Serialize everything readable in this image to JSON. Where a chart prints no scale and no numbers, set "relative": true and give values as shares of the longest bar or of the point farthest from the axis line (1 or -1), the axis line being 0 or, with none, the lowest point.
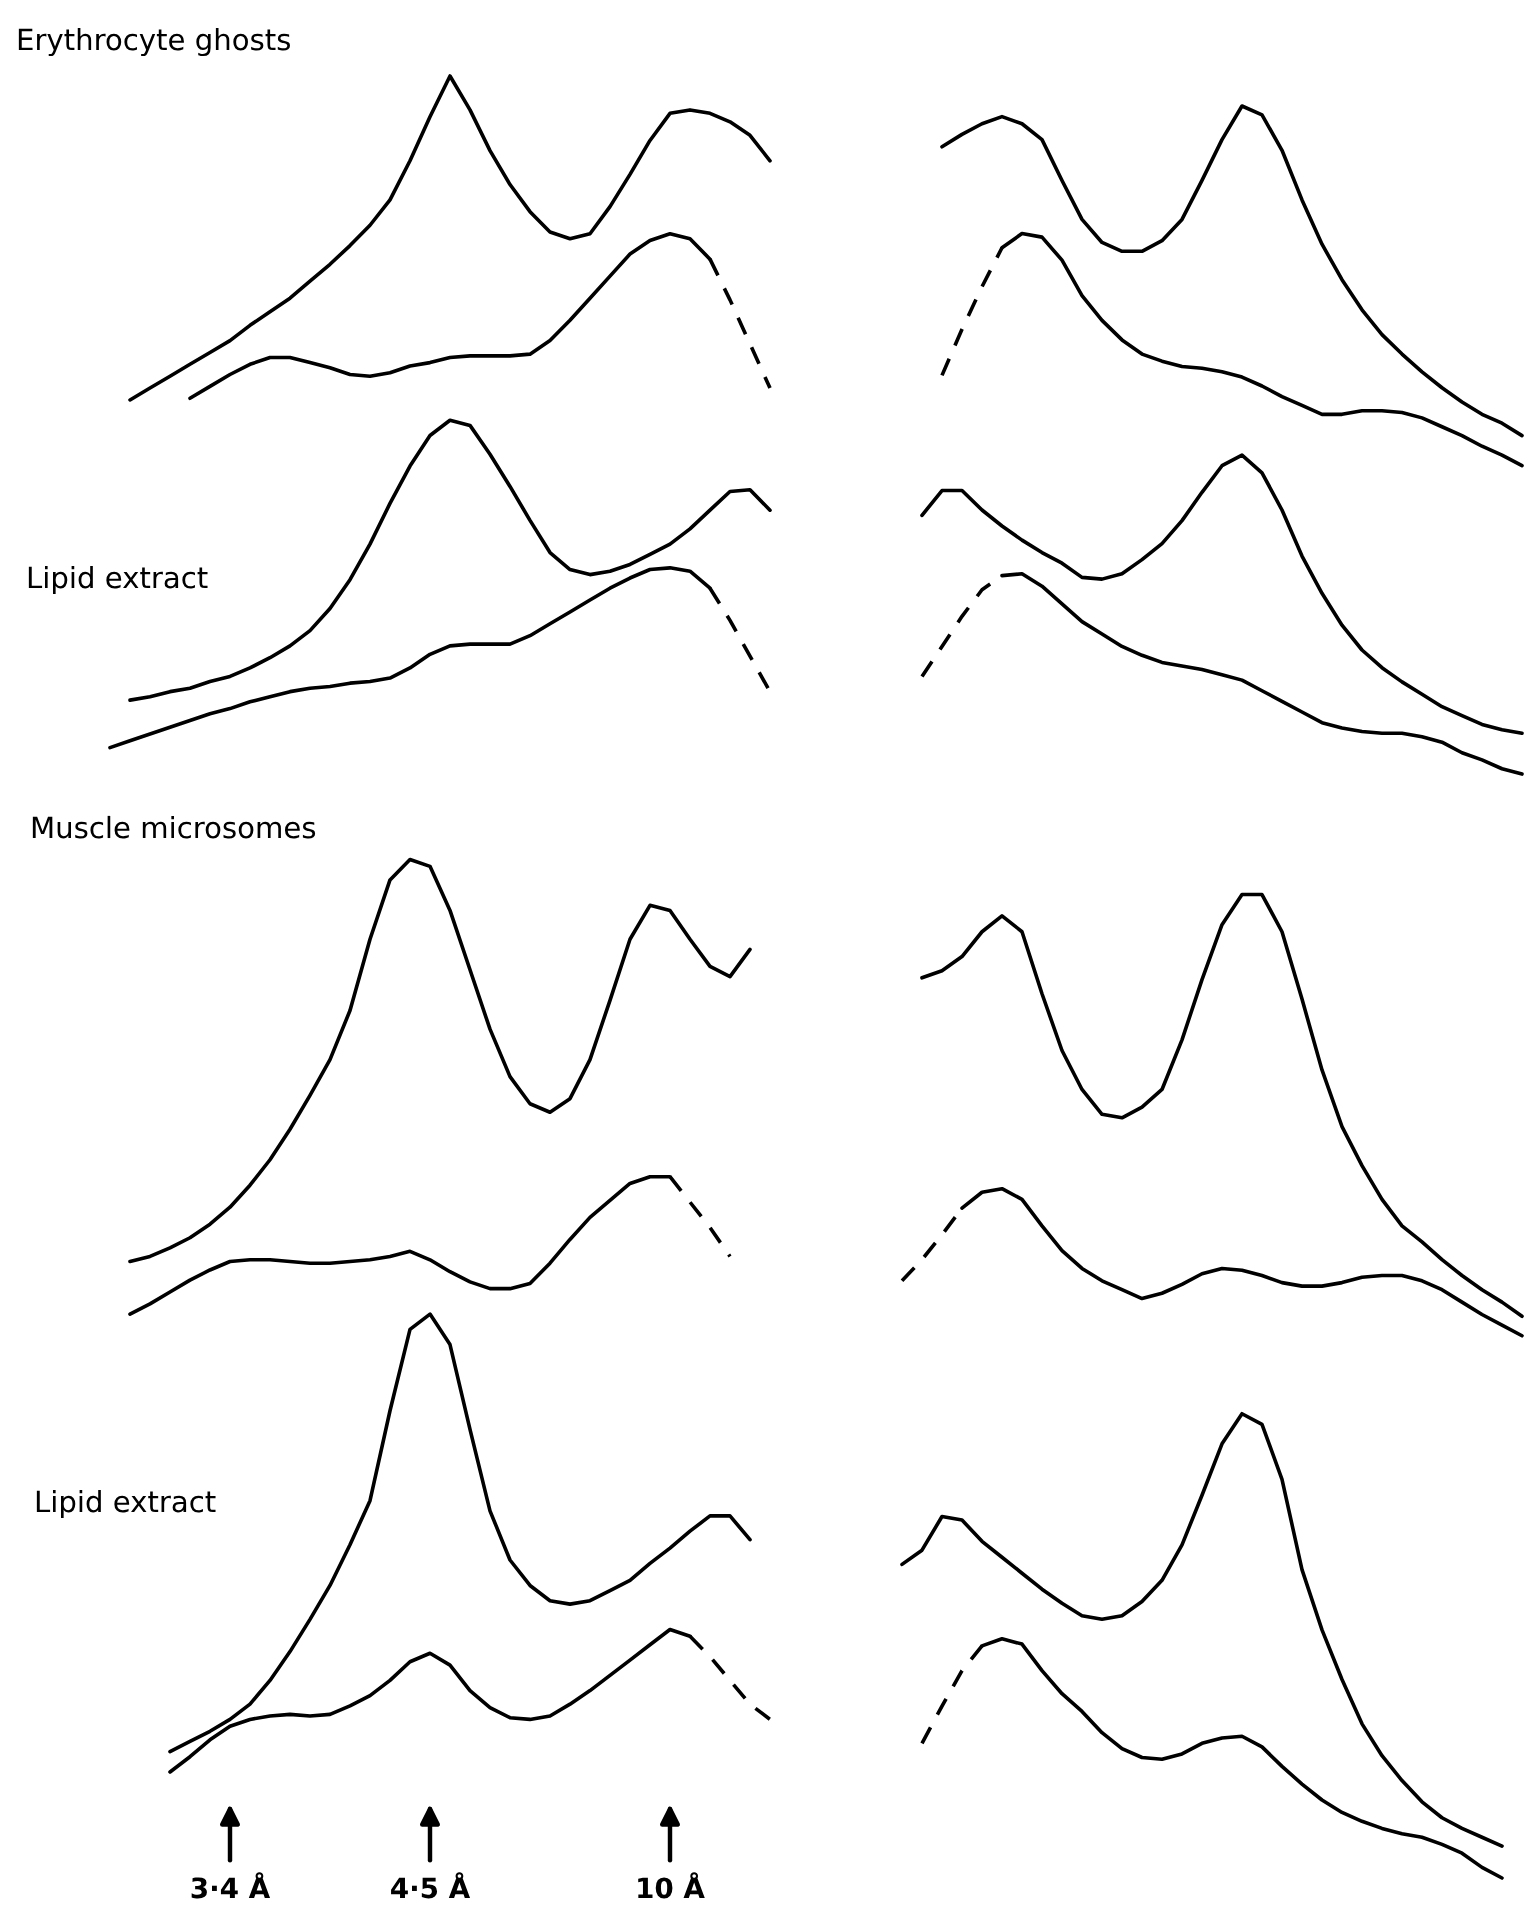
{
  "chart_data": [
    {
      "type": "line",
      "relative": true,
      "annotations": [
        "Erythrocyte ghosts",
        "Lipid extract",
        "Muscle microsomes",
        "Lipid extract"
      ],
      "categories": [
        null,
        null,
        null,
        null,
        null,
        null,
        "3·4 Å",
        null,
        null,
        null,
        null,
        null,
        null,
        null,
        null,
        null,
        "4·5 Å",
        null,
        null,
        null,
        null,
        null,
        null,
        null,
        null,
        null,
        null,
        null,
        "10 Å",
        null,
        null,
        null,
        null,
        null
      ],
      "series": [
        {
          "color": "#000000",
          "line_style": "solid",
          "values": [
            null,
            0.809,
            0.816,
            0.823,
            0.83,
            0.837,
            0.844,
            0.853,
            0.861,
            0.869,
            0.879,
            0.889,
            0.9,
            0.912,
            0.927,
            0.95,
            0.976,
            1.0,
            0.98,
            0.956,
            0.936,
            0.92,
            0.908,
            0.904,
            0.907,
            0.923,
            0.942,
            0.962,
            0.978,
            0.98,
            0.978,
            0.973,
            0.965,
            0.95
          ]
        },
        {
          "color": "#000000",
          "line_style": "solid",
          "values": [
            null,
            null,
            null,
            null,
            0.81,
            0.817,
            0.824,
            0.83,
            0.834,
            0.834,
            0.831,
            0.828,
            0.824,
            0.823,
            0.825,
            0.829,
            0.831,
            0.834,
            0.835,
            0.835,
            0.835,
            0.836,
            0.844,
            0.856,
            0.869,
            0.882,
            0.895,
            0.903,
            0.907,
            0.904,
            0.892,
            null,
            null,
            null
          ]
        },
        {
          "color": "#000000",
          "line_style": "dashed",
          "values": [
            null,
            null,
            null,
            null,
            null,
            null,
            null,
            null,
            null,
            null,
            null,
            null,
            null,
            null,
            null,
            null,
            null,
            null,
            null,
            null,
            null,
            null,
            null,
            null,
            null,
            null,
            null,
            null,
            null,
            null,
            0.892,
            0.868,
            0.842,
            0.816
          ]
        },
        {
          "color": "#000000",
          "line_style": "solid",
          "values": [
            null,
            0.632,
            0.634,
            0.637,
            0.639,
            0.643,
            0.646,
            0.651,
            0.657,
            0.664,
            0.673,
            0.686,
            0.703,
            0.724,
            0.748,
            0.77,
            0.788,
            0.797,
            0.794,
            0.777,
            0.758,
            0.738,
            0.719,
            0.709,
            0.706,
            0.708,
            0.712,
            0.718,
            0.724,
            0.733,
            0.744,
            0.755,
            0.756,
            0.744
          ]
        },
        {
          "color": "#000000",
          "line_style": "solid",
          "values": [
            0.604,
            0.608,
            0.612,
            0.616,
            0.62,
            0.624,
            0.627,
            0.631,
            0.634,
            0.637,
            0.639,
            0.64,
            0.642,
            0.643,
            0.645,
            0.651,
            0.659,
            0.664,
            0.665,
            0.665,
            0.665,
            0.67,
            0.677,
            0.684,
            0.691,
            0.698,
            0.704,
            0.709,
            0.71,
            0.708,
            0.698,
            null,
            null,
            null
          ]
        },
        {
          "color": "#000000",
          "line_style": "dashed",
          "values": [
            null,
            null,
            null,
            null,
            null,
            null,
            null,
            null,
            null,
            null,
            null,
            null,
            null,
            null,
            null,
            null,
            null,
            null,
            null,
            null,
            null,
            null,
            null,
            null,
            null,
            null,
            null,
            null,
            null,
            null,
            0.698,
            0.679,
            0.658,
            0.637
          ]
        },
        {
          "color": "#000000",
          "line_style": "solid",
          "values": [
            null,
            0.301,
            0.304,
            0.309,
            0.315,
            0.323,
            0.333,
            0.346,
            0.361,
            0.379,
            0.399,
            0.42,
            0.449,
            0.491,
            0.526,
            0.538,
            0.534,
            0.508,
            0.473,
            0.438,
            0.41,
            0.394,
            0.389,
            0.397,
            0.42,
            0.455,
            0.491,
            0.511,
            0.508,
            0.491,
            0.475,
            0.469,
            0.485,
            null
          ]
        },
        {
          "color": "#000000",
          "line_style": "solid",
          "values": [
            null,
            0.27,
            0.276,
            0.283,
            0.29,
            0.296,
            0.301,
            0.302,
            0.302,
            0.301,
            0.3,
            0.3,
            0.301,
            0.302,
            0.304,
            0.307,
            0.302,
            0.295,
            0.289,
            0.285,
            0.285,
            0.288,
            0.3,
            0.314,
            0.327,
            0.337,
            0.347,
            0.351,
            0.351,
            null,
            null,
            null,
            null,
            null
          ]
        },
        {
          "color": "#000000",
          "line_style": "dashed",
          "values": [
            null,
            null,
            null,
            null,
            null,
            null,
            null,
            null,
            null,
            null,
            null,
            null,
            null,
            null,
            null,
            null,
            null,
            null,
            null,
            null,
            null,
            null,
            null,
            null,
            null,
            null,
            null,
            null,
            0.351,
            0.336,
            0.321,
            0.304,
            null,
            null
          ]
        },
        {
          "color": "#000000",
          "line_style": "solid",
          "values": [
            null,
            null,
            null,
            0.012,
            0.018,
            0.024,
            0.031,
            0.04,
            0.054,
            0.071,
            0.09,
            0.11,
            0.134,
            0.16,
            0.213,
            0.261,
            0.27,
            0.252,
            0.202,
            0.154,
            0.125,
            0.11,
            0.101,
            0.099,
            0.101,
            0.107,
            0.113,
            0.123,
            0.132,
            0.142,
            0.151,
            0.151,
            0.137,
            null
          ]
        },
        {
          "color": "#000000",
          "line_style": "solid",
          "values": [
            null,
            null,
            null,
            0,
            0.009,
            0.019,
            0.027,
            0.031,
            0.033,
            0.034,
            0.033,
            0.034,
            0.039,
            0.045,
            0.054,
            0.065,
            0.07,
            0.063,
            0.048,
            0.038,
            0.032,
            0.031,
            0.033,
            0.04,
            0.048,
            0.057,
            0.066,
            0.075,
            0.084,
            0.08,
            null,
            null,
            null,
            null
          ]
        },
        {
          "color": "#000000",
          "line_style": "dashed",
          "values": [
            null,
            null,
            null,
            null,
            null,
            null,
            null,
            null,
            null,
            null,
            null,
            null,
            null,
            null,
            null,
            null,
            null,
            null,
            null,
            null,
            null,
            null,
            null,
            null,
            null,
            null,
            null,
            null,
            null,
            0.08,
            0.068,
            0.054,
            0.04,
            0.031
          ]
        }
      ]
    },
    {
      "type": "line",
      "relative": true,
      "categories": [
        null,
        null,
        null,
        null,
        null,
        null,
        null,
        null,
        null,
        null,
        null,
        null,
        null,
        null,
        null,
        null,
        null,
        null,
        null,
        null,
        null,
        null,
        null,
        null,
        null,
        null,
        null,
        null,
        null,
        null,
        null,
        null
      ],
      "series": [
        {
          "color": "#000000",
          "line_style": "solid",
          "values": [
            null,
            null,
            0.977,
            0.984,
            0.99,
            0.994,
            0.99,
            0.981,
            0.958,
            0.936,
            0.923,
            0.918,
            0.918,
            0.924,
            0.936,
            0.958,
            0.981,
            1.0,
            0.995,
            0.975,
            0.947,
            0.922,
            0.902,
            0.885,
            0.871,
            0.86,
            0.85,
            0.841,
            0.833,
            0.826,
            0.821,
            0.814
          ]
        },
        {
          "color": "#000000",
          "line_style": "dashed",
          "values": [
            null,
            null,
            0.848,
            0.874,
            0.898,
            0.92,
            null,
            null,
            null,
            null,
            null,
            null,
            null,
            null,
            null,
            null,
            null,
            null,
            null,
            null,
            null,
            null,
            null,
            null,
            null,
            null,
            null,
            null,
            null,
            null,
            null,
            null
          ]
        },
        {
          "color": "#000000",
          "line_style": "solid",
          "values": [
            null,
            null,
            null,
            null,
            null,
            0.92,
            0.928,
            0.926,
            0.913,
            0.893,
            0.879,
            0.868,
            0.86,
            0.856,
            0.853,
            0.852,
            0.85,
            0.847,
            0.842,
            0.836,
            0.831,
            0.826,
            0.826,
            0.828,
            0.828,
            0.827,
            0.824,
            0.819,
            0.814,
            0.808,
            0.803,
            0.797
          ]
        },
        {
          "color": "#000000",
          "line_style": "solid",
          "values": [
            null,
            0.769,
            0.783,
            0.783,
            0.772,
            0.763,
            0.755,
            0.748,
            0.742,
            0.734,
            0.733,
            0.736,
            0.744,
            0.753,
            0.766,
            0.782,
            0.797,
            0.803,
            0.793,
            0.772,
            0.746,
            0.725,
            0.707,
            0.693,
            0.683,
            0.675,
            0.668,
            0.661,
            0.656,
            0.651,
            0.648,
            0.646
          ]
        },
        {
          "color": "#000000",
          "line_style": "dashed",
          "values": [
            null,
            0.678,
            0.695,
            0.712,
            0.727,
            0.735,
            null,
            null,
            null,
            null,
            null,
            null,
            null,
            null,
            null,
            null,
            null,
            null,
            null,
            null,
            null,
            null,
            null,
            null,
            null,
            null,
            null,
            null,
            null,
            null,
            null,
            null
          ]
        },
        {
          "color": "#000000",
          "line_style": "solid",
          "values": [
            null,
            null,
            null,
            null,
            null,
            0.735,
            0.736,
            0.729,
            0.719,
            0.709,
            0.702,
            0.695,
            0.69,
            0.686,
            0.684,
            0.682,
            0.679,
            0.676,
            0.67,
            0.664,
            0.658,
            0.652,
            0.649,
            0.647,
            0.646,
            0.646,
            0.644,
            0.641,
            0.635,
            0.631,
            0.626,
            0.623
          ]
        },
        {
          "color": "#000000",
          "line_style": "solid",
          "values": [
            null,
            0.508,
            0.512,
            0.52,
            0.534,
            0.543,
            0.534,
            0.499,
            0.467,
            0.445,
            0.431,
            0.429,
            0.435,
            0.445,
            0.473,
            0.507,
            0.538,
            0.555,
            0.555,
            0.534,
            0.496,
            0.456,
            0.424,
            0.402,
            0.383,
            0.368,
            0.359,
            0.349,
            0.34,
            0.332,
            0.325,
            0.317
          ]
        },
        {
          "color": "#000000",
          "line_style": "dashed",
          "values": [
            0.337,
            0.349,
            0.363,
            0.378,
            null,
            null,
            null,
            null,
            null,
            null,
            null,
            null,
            null,
            null,
            null,
            null,
            null,
            null,
            null,
            null,
            null,
            null,
            null,
            null,
            null,
            null,
            null,
            null,
            null,
            null,
            null,
            null
          ]
        },
        {
          "color": "#000000",
          "line_style": "solid",
          "values": [
            null,
            null,
            null,
            0.378,
            0.387,
            0.389,
            0.383,
            0.368,
            0.354,
            0.344,
            0.337,
            0.332,
            0.327,
            0.33,
            0.335,
            0.341,
            0.344,
            0.343,
            0.34,
            0.336,
            0.334,
            0.334,
            0.336,
            0.339,
            0.34,
            0.34,
            0.337,
            0.332,
            0.325,
            0.318,
            0.312,
            0.306
          ]
        },
        {
          "color": "#000000",
          "line_style": "solid",
          "values": [
            0.177,
            0.185,
            0.204,
            0.202,
            0.19,
            0.181,
            0.172,
            0.163,
            0.155,
            0.148,
            0.146,
            0.148,
            0.156,
            0.168,
            0.188,
            0.216,
            0.245,
            0.262,
            0.256,
            0.225,
            0.174,
            0.14,
            0.112,
            0.087,
            0.069,
            0.055,
            0.043,
            0.034,
            0.028,
            0.023,
            0.018,
            null
          ]
        },
        {
          "color": "#000000",
          "line_style": "dashed",
          "values": [
            null,
            0.076,
            0.097,
            0.117,
            0.131,
            null,
            null,
            null,
            null,
            null,
            null,
            null,
            null,
            null,
            null,
            null,
            null,
            null,
            null,
            null,
            null,
            null,
            null,
            null,
            null,
            null,
            null,
            null,
            null,
            null,
            null,
            null
          ]
        },
        {
          "color": "#000000",
          "line_style": "solid",
          "values": [
            null,
            null,
            null,
            null,
            0.131,
            0.135,
            0.132,
            0.117,
            0.104,
            0.094,
            0.082,
            0.073,
            0.068,
            0.067,
            0.07,
            0.076,
            0.079,
            0.08,
            0.074,
            0.063,
            0.053,
            0.044,
            0.037,
            0.032,
            0.028,
            0.025,
            0.023,
            0.019,
            0.014,
            0.006,
            0,
            null
          ]
        }
      ]
    }
  ]
}
